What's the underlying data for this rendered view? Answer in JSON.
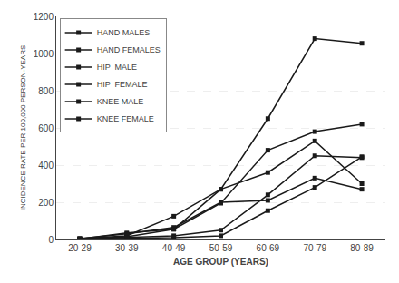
{
  "chart_data": {
    "type": "line",
    "xlabel": "AGE GROUP (YEARS)",
    "ylabel": "INCIDENCE RATE PER 100,000 PERSON-YEARS",
    "categories": [
      "20-29",
      "30-39",
      "40-49",
      "50-59",
      "60-69",
      "70-79",
      "80-89"
    ],
    "series": [
      {
        "name": "HAND MALES",
        "color": "#1a1a1a",
        "marker": "square",
        "line_style": "solid",
        "values": [
          5,
          30,
          65,
          200,
          210,
          330,
          270
        ]
      },
      {
        "name": "HAND FEMALES",
        "color": "#1a1a1a",
        "marker": "square",
        "line_style": "solid",
        "values": [
          5,
          20,
          125,
          270,
          360,
          530,
          300
        ]
      },
      {
        "name": "HIP  MALE",
        "color": "#1a1a1a",
        "marker": "square",
        "line_style": "solid",
        "values": [
          3,
          5,
          10,
          20,
          155,
          280,
          445
        ]
      },
      {
        "name": "HIP  FEMALE",
        "color": "#1a1a1a",
        "marker": "square",
        "line_style": "solid",
        "values": [
          3,
          10,
          20,
          50,
          240,
          450,
          440
        ]
      },
      {
        "name": "KNEE MALE",
        "color": "#1a1a1a",
        "marker": "square",
        "line_style": "solid",
        "values": [
          3,
          15,
          55,
          195,
          480,
          580,
          620
        ]
      },
      {
        "name": "KNEE FEMALE",
        "color": "#1a1a1a",
        "marker": "square",
        "line_style": "solid",
        "values": [
          3,
          35,
          55,
          270,
          650,
          1080,
          1055
        ]
      }
    ],
    "ylim": [
      0,
      1200
    ],
    "yticks": [
      0,
      200,
      400,
      600,
      800,
      1000,
      1200
    ],
    "grid": true,
    "legend": "upper left"
  }
}
